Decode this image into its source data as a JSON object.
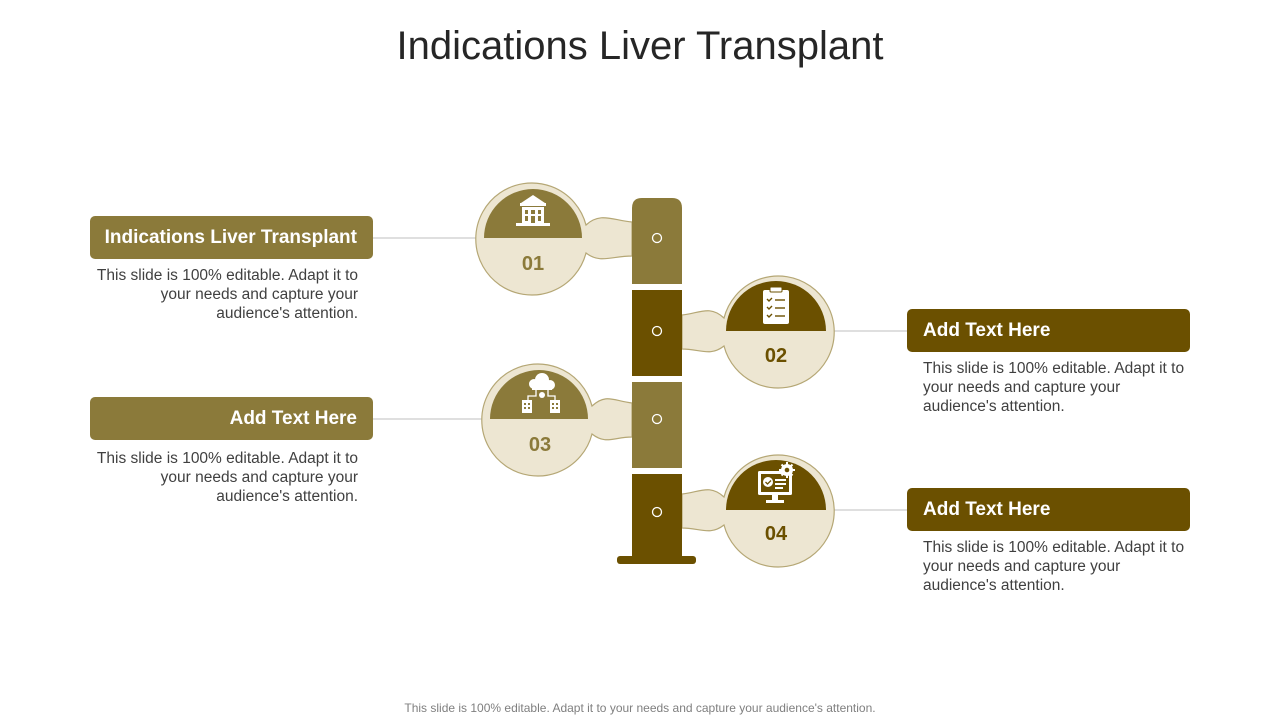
{
  "title": "Indications Liver Transplant",
  "footer": "This slide is 100% editable. Adapt it to your needs and capture your audience's attention.",
  "colors": {
    "olive": "#8b7a3a",
    "brown": "#6b5000",
    "cream": "#ede6d2",
    "outline": "#b5a775"
  },
  "steps": [
    {
      "number": "01",
      "heading": "Indications Liver Transplant",
      "text": "This slide is 100% editable. Adapt it to your needs and capture your audience's attention.",
      "icon": "hospital-building-icon",
      "side": "left"
    },
    {
      "number": "02",
      "heading": "Add Text Here",
      "text": "This slide is 100% editable. Adapt it to your needs and capture your audience's attention.",
      "icon": "clipboard-checklist-icon",
      "side": "right"
    },
    {
      "number": "03",
      "heading": "Add Text Here",
      "text": "This slide is 100% editable. Adapt it to your needs and capture your audience's attention.",
      "icon": "cloud-network-icon",
      "side": "left"
    },
    {
      "number": "04",
      "heading": "Add Text Here",
      "text": "This slide is 100% editable. Adapt it to your needs and capture your audience's attention.",
      "icon": "monitor-settings-icon",
      "side": "right"
    }
  ]
}
